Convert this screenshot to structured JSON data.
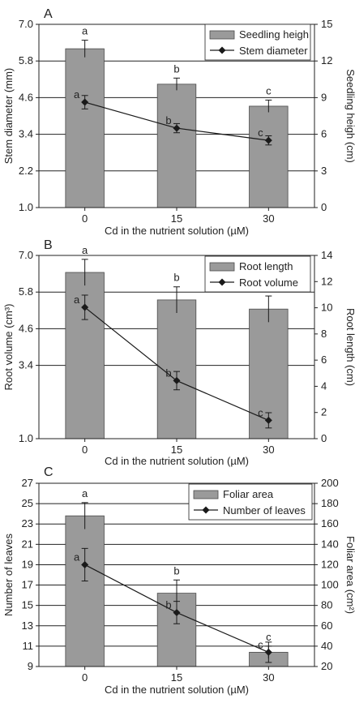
{
  "chart_data": [
    {
      "type": "bar",
      "panel_label": "A",
      "categories": [
        "0",
        "15",
        "30"
      ],
      "xlabel": "Cd in the nutrient solution (µM)",
      "bar": {
        "name": "Seedling heigh",
        "values": [
          13.0,
          10.1,
          8.3
        ],
        "errors": [
          0.7,
          0.5,
          0.5
        ],
        "letters": [
          "a",
          "b",
          "c"
        ],
        "axis": "right"
      },
      "line": {
        "name": "Stem diameter",
        "values": [
          4.45,
          3.6,
          3.2
        ],
        "errors": [
          0.22,
          0.15,
          0.15
        ],
        "letters": [
          "a",
          "b",
          "c"
        ],
        "axis": "left"
      },
      "left_axis": {
        "label": "Stem diameter (mm)",
        "ylim": [
          1.0,
          7.0
        ],
        "ticks": [
          "1.0",
          "2.2",
          "3.4",
          "4.6",
          "5.8",
          "7.0"
        ]
      },
      "right_axis": {
        "label": "Seedling heigh (cm)",
        "ylim": [
          0,
          15
        ],
        "ticks": [
          "0",
          "3",
          "6",
          "9",
          "12",
          "15"
        ]
      },
      "grid": true,
      "legend": "top-right"
    },
    {
      "type": "bar",
      "panel_label": "B",
      "categories": [
        "0",
        "15",
        "30"
      ],
      "xlabel": "Cd in the nutrient solution (µM)",
      "bar": {
        "name": "Root length",
        "values": [
          12.7,
          10.6,
          9.9
        ],
        "errors": [
          1.0,
          1.0,
          1.0
        ],
        "letters": [
          "a",
          "b",
          "b"
        ],
        "axis": "right"
      },
      "line": {
        "name": "Root volume",
        "values": [
          5.3,
          2.9,
          1.6
        ],
        "errors": [
          0.4,
          0.3,
          0.25
        ],
        "letters": [
          "a",
          "b",
          "c"
        ],
        "axis": "left"
      },
      "left_axis": {
        "label": "Root volume (cm³)",
        "ylim": [
          1.0,
          7.0
        ],
        "ticks": [
          "1.0",
          "3.4",
          "4.6",
          "5.8",
          "7.0"
        ]
      },
      "right_axis": {
        "label": "Root length (cm)",
        "ylim": [
          0,
          14
        ],
        "ticks": [
          "0",
          "2",
          "4",
          "6",
          "8",
          "10",
          "12",
          "14"
        ]
      },
      "grid": true,
      "legend": "top-right"
    },
    {
      "type": "bar",
      "panel_label": "C",
      "categories": [
        "0",
        "15",
        "30"
      ],
      "xlabel": "Cd in the nutrient solution (µM)",
      "bar": {
        "name": "Foliar area",
        "values": [
          168,
          92,
          34
        ],
        "errors": [
          13,
          13,
          6
        ],
        "letters": [
          "a",
          "b",
          "c"
        ],
        "axis": "right"
      },
      "line": {
        "name": "Number of leaves",
        "values": [
          19.0,
          14.3,
          10.4
        ],
        "errors": [
          1.6,
          1.1,
          1.0
        ],
        "letters": [
          "a",
          "b",
          "c"
        ],
        "axis": "left"
      },
      "left_axis": {
        "label": "Number of leaves",
        "ylim": [
          9,
          27
        ],
        "ticks": [
          "9",
          "11",
          "13",
          "15",
          "17",
          "19",
          "21",
          "23",
          "25",
          "27"
        ]
      },
      "right_axis": {
        "label": "Foliar area (cm²)",
        "ylim": [
          20,
          200
        ],
        "ticks": [
          "20",
          "40",
          "60",
          "80",
          "100",
          "120",
          "140",
          "160",
          "180",
          "200"
        ]
      },
      "grid": true,
      "legend": "top-right"
    }
  ],
  "colors": {
    "bar_fill": "#9a9a9a",
    "bar_stroke": "#4a4a4a",
    "line": "#1a1a1a",
    "grid": "#222222",
    "axis": "#222222"
  }
}
